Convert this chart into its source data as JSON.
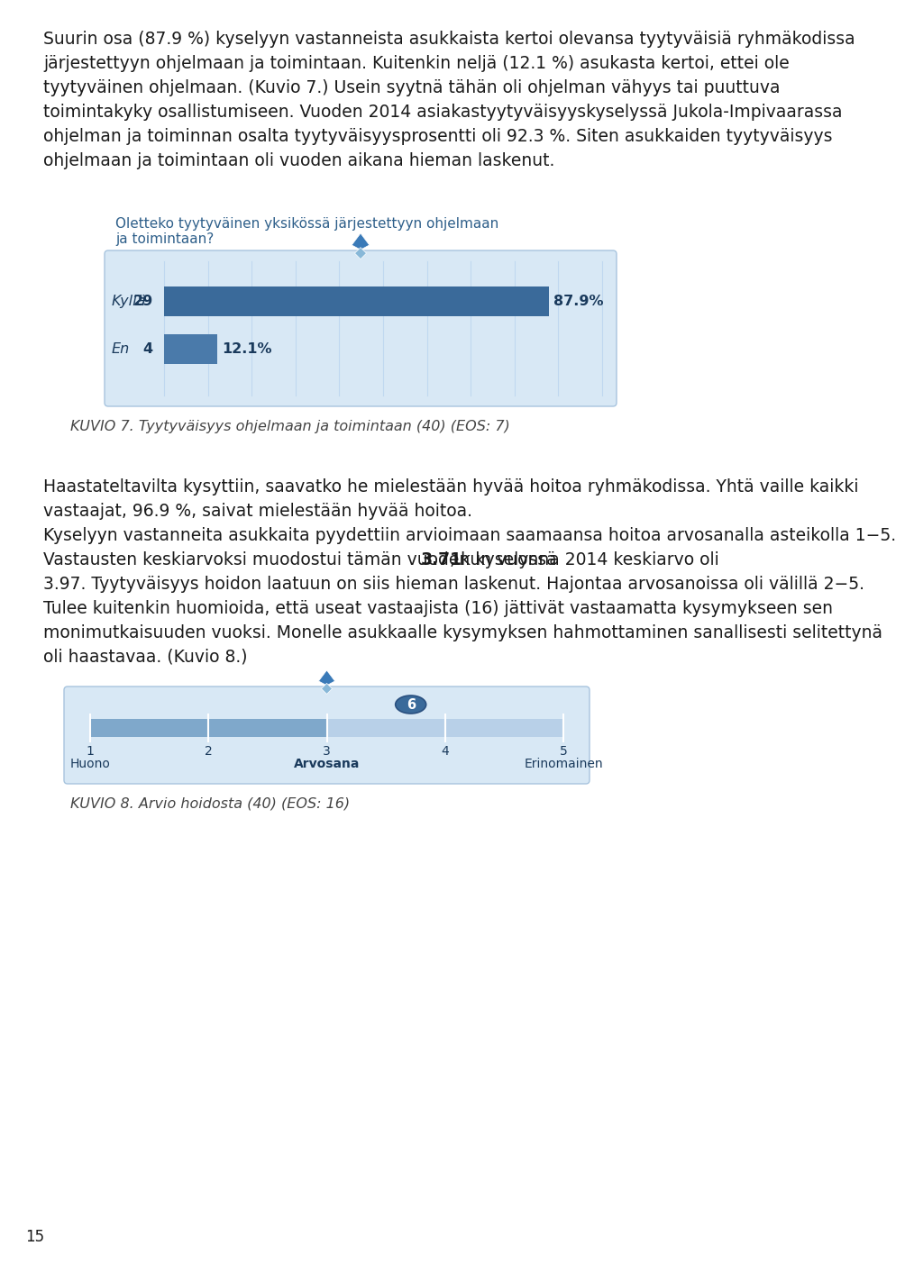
{
  "page_bg": "#ffffff",
  "page_number": "15",
  "text_color": "#1a1a1a",
  "text_color_dark": "#222222",
  "chart1_title_color": "#2e5f8a",
  "chart1_bg": "#d8e8f5",
  "chart1_bar_bg": "#b8d0e8",
  "chart1_bar1_color": "#3a6a9a",
  "chart1_bar2_color": "#4a7aaa",
  "chart1_grid_color": "#c0d8f0",
  "diamond_dark": "#3a7ab8",
  "diamond_light": "#88b8d8",
  "kuvio_color": "#444444",
  "chart2_bg": "#d8e8f5",
  "chart2_bar_bg": "#b8d0e8",
  "chart2_bar_dark": "#6898c0",
  "chart2_marker_color": "#3a6a9a",
  "para1_lines": [
    "Suurin osa (87.9 %) kyselyyn vastanneista asukkaista kertoi olevansa tyytyväisiä ryhmäkodissa",
    "järjestettyyn ohjelmaan ja toimintaan. Kuitenkin neljä (12.1 %) asukasta kertoi, ettei ole",
    "tyytyväinen ohjelmaan. (Kuvio 7.) Usein syytnä tähän oli ohjelman vähyys tai puuttuva",
    "toimintakyky osallistumiseen. Vuoden 2014 asiakastyytyväisyyskyselyssä Jukola-Impivaarassa",
    "ohjelman ja toiminnan osalta tyytyväisyysprosentti oli 92.3 %. Siten asukkaiden tyytyväisyys",
    "ohjelmaan ja toimintaan oli vuoden aikana hieman laskenut."
  ],
  "chart1_title_line1": "Oletteko tyytyväinen yksikössä järjestettyyn ohjelmaan",
  "chart1_title_line2": "ja toimintaan?",
  "kuvio7_text": "KUVIO 7. Tyytyväisyys ohjelmaan ja toimintaan (40) (EOS: 7)",
  "para2_lines": [
    "Haastateltavilta kysyttiin, saavatko he mielestään hyvää hoitoa ryhmäkodissa. Yhtä vaille kaikki",
    "vastaajat, 96.9 %, saivat mielestään hyvää hoitoa.",
    "Kyselyyn vastanneita asukkaita pyydettiin arvioimaan saamaansa hoitoa arvosanalla asteikolla 1−5.",
    "Vastausten keskiarvoksi muodostui tämän vuoden kyselyssä __BOLD__3.71__, kun vuonna 2014 keskiarvo oli",
    "3.97. Tyytyväisyys hoidon laatuun on siis hieman laskenut. Hajontaa arvosanoissa oli välillä 2−5.",
    "Tulee kuitenkin huomioida, että useat vastaajista (16) jättivät vastaamatta kysymykseen sen",
    "monimutkaisuuden vuoksi. Monelle asukkaalle kysymyksen hahmottaminen sanallisesti selitettynä",
    "oli haastavaa. (Kuvio 8.)"
  ],
  "kuvio8_text": "KUVIO 8. Arvio hoidosta (40) (EOS: 16)",
  "chart2_marker_val": 3.71,
  "chart2_marker_label": "6"
}
